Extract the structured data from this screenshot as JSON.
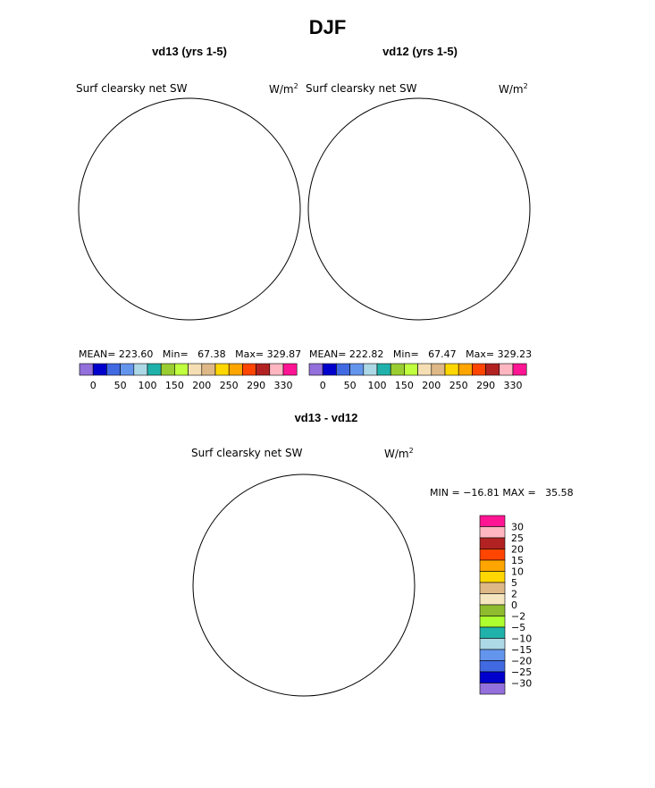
{
  "page_title": "DJF",
  "colors": {
    "model_scale": [
      "#9370db",
      "#0000cd",
      "#4169e1",
      "#6495ed",
      "#add8e6",
      "#20b2aa",
      "#9acd32",
      "#c0ff3e",
      "#f5deb3",
      "#deb887",
      "#ffd700",
      "#ffa500",
      "#ff4500",
      "#b22222",
      "#ffb6c1",
      "#ff1493"
    ],
    "diff_scale": [
      "#9370db",
      "#0000cd",
      "#4169e1",
      "#6495ed",
      "#add8e6",
      "#20b2aa",
      "#adff2f",
      "#8fbc2f",
      "#f5e6c0",
      "#deb887",
      "#ffd700",
      "#ffa500",
      "#ff4500",
      "#b22222",
      "#ffb6c1",
      "#ff1493"
    ]
  },
  "chart_data": [
    {
      "type": "heatmap",
      "projection": "south-polar-stereographic",
      "title": "vd13 (yrs 1-5)",
      "variable": "Surf clearsky net SW",
      "units": "W/m2",
      "units_base": "W/m",
      "units_exp": "2",
      "stats": {
        "mean_label": "MEAN=",
        "mean": "223.60",
        "min_label": "Min=",
        "min": "67.38",
        "max_label": "Max=",
        "max": "329.87"
      },
      "colorbar_ticks": [
        "0",
        "50",
        "100",
        "150",
        "200",
        "250",
        "290",
        "330"
      ],
      "contour_levels": [
        0,
        25,
        50,
        75,
        100,
        125,
        150,
        175,
        200,
        225,
        250,
        270,
        290,
        310,
        330
      ]
    },
    {
      "type": "heatmap",
      "projection": "south-polar-stereographic",
      "title": "vd12 (yrs 1-5)",
      "variable": "Surf clearsky net SW",
      "units": "W/m2",
      "units_base": "W/m",
      "units_exp": "2",
      "stats": {
        "mean_label": "MEAN=",
        "mean": "222.82",
        "min_label": "Min=",
        "min": "67.47",
        "max_label": "Max=",
        "max": "329.23"
      },
      "colorbar_ticks": [
        "0",
        "50",
        "100",
        "150",
        "200",
        "250",
        "290",
        "330"
      ],
      "contour_levels": [
        0,
        25,
        50,
        75,
        100,
        125,
        150,
        175,
        200,
        225,
        250,
        270,
        290,
        310,
        330
      ]
    },
    {
      "type": "heatmap",
      "projection": "south-polar-stereographic",
      "title": "vd13 - vd12",
      "variable": "Surf clearsky net SW",
      "units": "W/m2",
      "units_base": "W/m",
      "units_exp": "2",
      "stats": {
        "min_label": "MIN =",
        "min": "−16.81",
        "max_label": "MAX =",
        "max": "35.58"
      },
      "colorbar_ticks": [
        "30",
        "25",
        "20",
        "15",
        "10",
        "5",
        "2",
        "0",
        "−2",
        "−5",
        "−10",
        "−15",
        "−20",
        "−25",
        "−30"
      ],
      "contour_levels": [
        -30,
        -25,
        -20,
        -15,
        -10,
        -5,
        -2,
        0,
        2,
        5,
        10,
        15,
        20,
        25,
        30
      ]
    }
  ]
}
